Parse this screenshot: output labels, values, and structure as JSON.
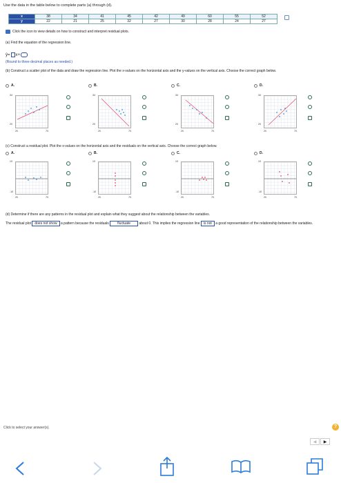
{
  "intro": "Use the data in the table below to complete parts (a) through (d).",
  "table": {
    "x_label": "x",
    "y_label": "y",
    "x_values": [
      "38",
      "34",
      "41",
      "45",
      "42",
      "49",
      "60",
      "55",
      "52"
    ],
    "y_values": [
      "22",
      "21",
      "25",
      "32",
      "27",
      "30",
      "28",
      "24",
      "27"
    ]
  },
  "help_text": "Click the icon to view details on how to construct and interpret residual plots.",
  "part_a": {
    "prompt": "(a) Find the equation of the regression line.",
    "eq_prefix": "ŷ=",
    "eq_mid": "x+",
    "round_note": "(Round to three decimal places as needed.)"
  },
  "part_b": {
    "prompt": "(b) Construct a scatter plot of the data and draw the regression line. Plot the x-values on the horizontal axis and the y-values on the vertical axis. Choose the correct graph below."
  },
  "part_c": {
    "prompt": "(c) Construct a residual plot. Plot the x-values on the horizontal axis and the residuals on the vertical axis. Choose the correct graph below."
  },
  "options": [
    "A.",
    "B.",
    "C.",
    "D."
  ],
  "scatter_axis": {
    "y_top": "34",
    "y_bottom": "20",
    "x_left": "20",
    "x_right": "70"
  },
  "residual_axis": {
    "y_top": "10",
    "y_bottom": "-10",
    "x_left": "20",
    "x_right": "70"
  },
  "part_d": {
    "prompt": "(d) Determine if there are any patterns in the residual plot and explain what they suggest about the relationship between the variables.",
    "s1": "The residual plot",
    "b1": "does not show",
    "s2": "a pattern because the residuals",
    "b2": "fluctuate",
    "s3": "about 0. This implies the regression line",
    "b3": "is not",
    "s4": "a good representation of the relationship between the variables."
  },
  "footer": {
    "select_text": "Click to select your answer(s).",
    "help": "?",
    "prev": "◀",
    "next": "▶"
  }
}
